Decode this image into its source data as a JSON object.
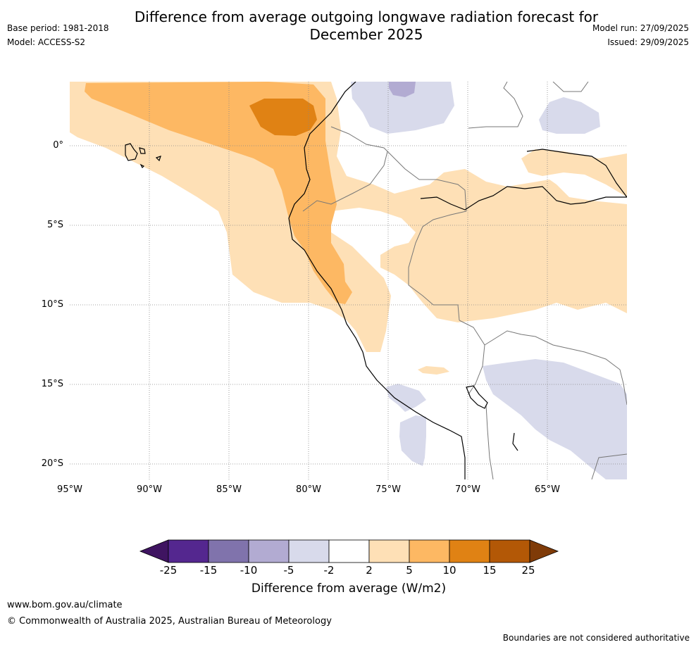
{
  "header": {
    "title_line1": "Difference from average outgoing longwave radiation forecast for",
    "title_line2": "December 2025",
    "base_period": "Base period: 1981-2018",
    "model": "Model: ACCESS-S2",
    "model_run": "Model run: 27/09/2025",
    "issued": "Issued: 29/09/2025"
  },
  "map": {
    "latitude_labels": [
      "0°",
      "5°S",
      "10°S",
      "15°S",
      "20°S"
    ],
    "longitude_labels": [
      "95°W",
      "90°W",
      "85°W",
      "80°W",
      "75°W",
      "70°W",
      "65°W"
    ]
  },
  "colorbar": {
    "ticks": [
      "-25",
      "-15",
      "-10",
      "-5",
      "-2",
      "2",
      "5",
      "10",
      "15",
      "25"
    ],
    "colors": [
      "#3f1461",
      "#54278f",
      "#8073ac",
      "#b2abd2",
      "#d8daeb",
      "#ffffff",
      "#fee0b6",
      "#fdb863",
      "#e08214",
      "#b35806",
      "#7f3b08"
    ],
    "label": "Difference from average (W/m2)"
  },
  "footer": {
    "url": "www.bom.gov.au/climate",
    "copyright": "© Commonwealth of Australia 2025, Australian Bureau of Meteorology",
    "disclaimer": "Boundaries are not considered authoritative"
  }
}
